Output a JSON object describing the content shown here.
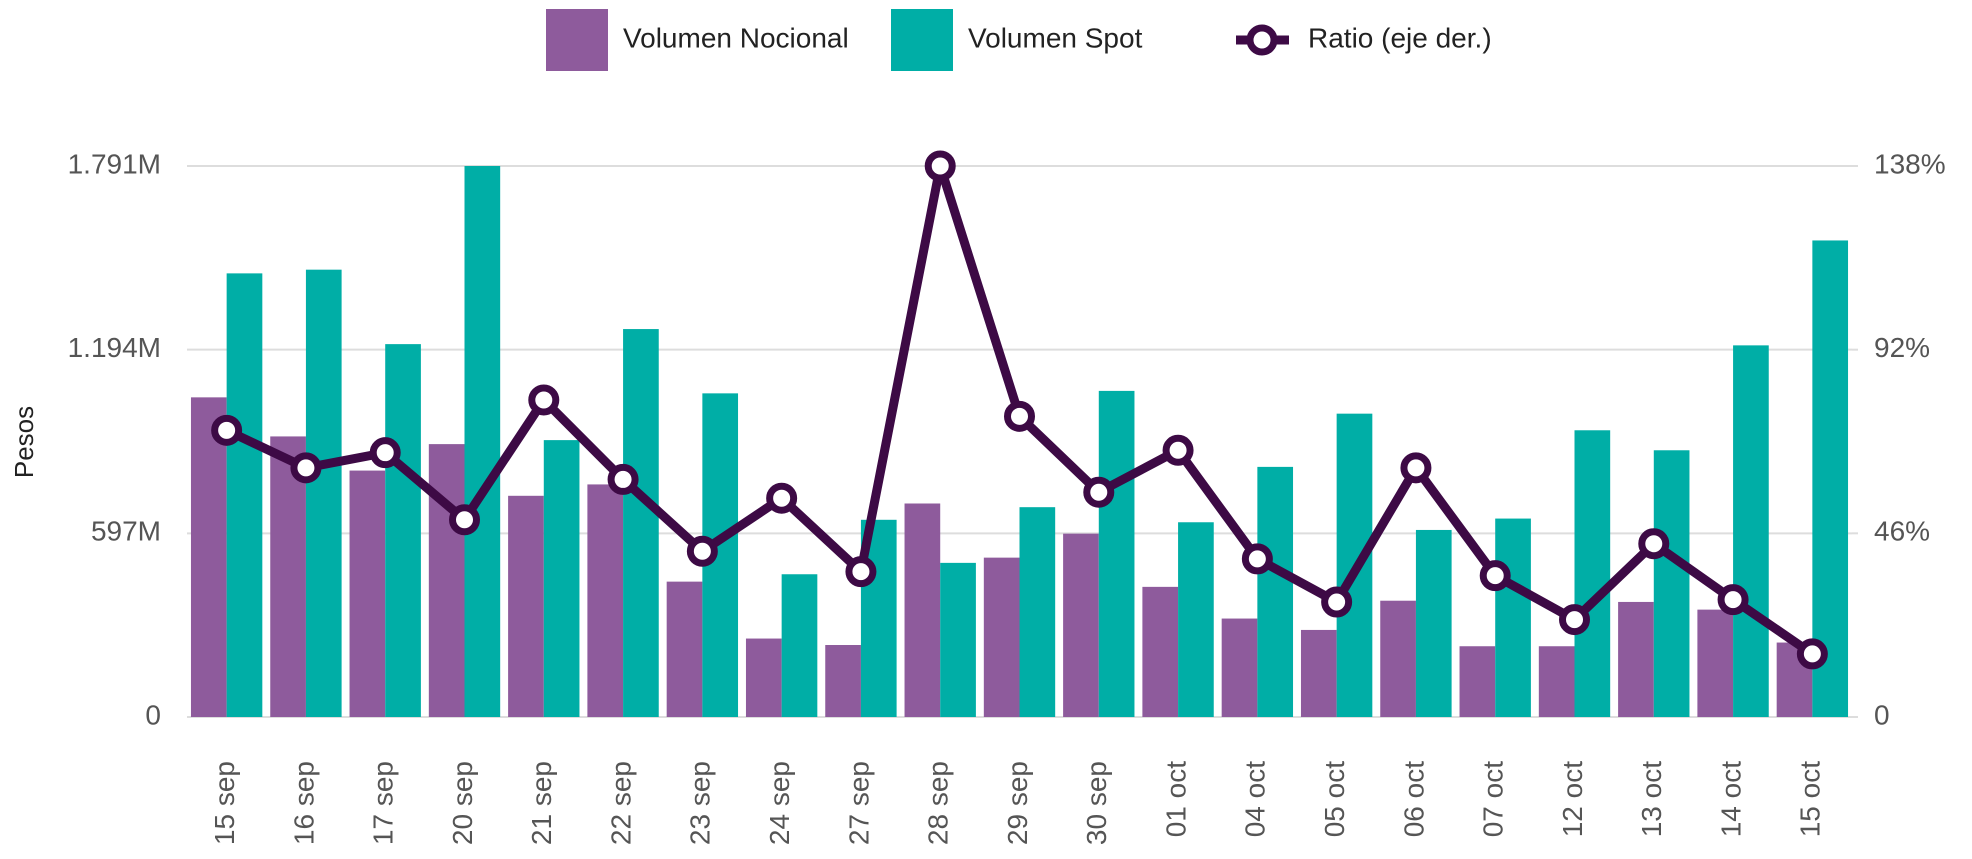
{
  "chart_data": {
    "type": "bar",
    "y_label": "Pesos",
    "categories": [
      "15 sep",
      "16 sep",
      "17 sep",
      "20 sep",
      "21 sep",
      "22 sep",
      "23 sep",
      "24 sep",
      "27 sep",
      "28 sep",
      "29 sep",
      "30 sep",
      "01 oct",
      "04 oct",
      "05 oct",
      "06 oct",
      "07 oct",
      "12 oct",
      "13 oct",
      "14 oct",
      "15 oct"
    ],
    "series": [
      {
        "name": "Volumen Nocional",
        "type": "bar",
        "color": "#8e5b9c",
        "values": [
          1039,
          912,
          801,
          887,
          719,
          756,
          440,
          255,
          234,
          694,
          518,
          596,
          423,
          320,
          283,
          378,
          230,
          230,
          374,
          349,
          242
        ]
      },
      {
        "name": "Volumen Spot",
        "type": "bar",
        "color": "#00aea6",
        "values": [
          1442,
          1454,
          1212,
          1791,
          900,
          1261,
          1052,
          464,
          641,
          501,
          682,
          1060,
          633,
          813,
          986,
          608,
          645,
          932,
          867,
          1208,
          1549
        ]
      },
      {
        "name": "Ratio (eje der.)",
        "type": "line",
        "axis": "y2",
        "color": "#3d0a45",
        "values": [
          71.8,
          62.4,
          66.2,
          49.4,
          79.4,
          59.5,
          41.5,
          54.8,
          36.4,
          138,
          75.3,
          56.3,
          66.8,
          39.6,
          28.8,
          62.4,
          35.4,
          24.4,
          43.4,
          29.4,
          15.8
        ]
      }
    ],
    "ylim": [
      0,
      1791
    ],
    "yticks": [
      0,
      {
        "value": 597,
        "label": "597M"
      },
      {
        "value": 1194,
        "label": "1.194M"
      },
      {
        "value": 1791,
        "label": "1.791M"
      }
    ],
    "y2lim": [
      0,
      138
    ],
    "y2ticks": [
      0,
      {
        "value": 46,
        "label": "46%"
      },
      {
        "value": 92,
        "label": "92%"
      },
      {
        "value": 138,
        "label": "138%"
      }
    ],
    "grid": true,
    "legend": "top"
  }
}
